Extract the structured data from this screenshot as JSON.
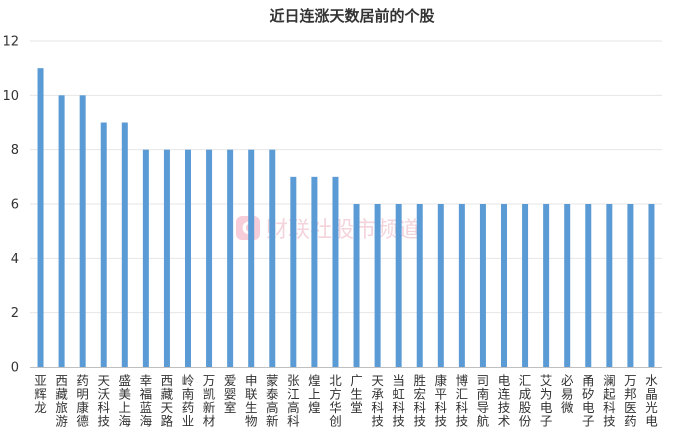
{
  "chart_data": {
    "type": "bar",
    "title": "近日连涨天数居前的个股",
    "xlabel": "",
    "ylabel": "",
    "ylim": [
      0,
      12
    ],
    "yticks": [
      0,
      2,
      4,
      6,
      8,
      10,
      12
    ],
    "grid": true,
    "legend": "none",
    "color": "#5b9bd5",
    "categories": [
      "亚辉龙",
      "西藏旅游",
      "药明康德",
      "天沃科技",
      "盛美上海",
      "幸福蓝海",
      "西藏天路",
      "岭南药业",
      "万凯新材",
      "爱婴室",
      "申联生物",
      "蒙泰高新",
      "张江高科",
      "煌上煌",
      "北方华创",
      "广生堂",
      "天承科技",
      "当虹科技",
      "胜宏科技",
      "康平科技",
      "博汇科技",
      "司南导航",
      "电连技术",
      "汇成股份",
      "艾为电子",
      "必易微",
      "甬矽电子",
      "澜起科技",
      "万邦医药",
      "水晶光电"
    ],
    "values": [
      11,
      10,
      10,
      9,
      9,
      8,
      8,
      8,
      8,
      8,
      8,
      8,
      7,
      7,
      7,
      6,
      6,
      6,
      6,
      6,
      6,
      6,
      6,
      6,
      6,
      6,
      6,
      6,
      6,
      6
    ]
  },
  "watermark": {
    "logo_letter": "C",
    "text": "财联社股市频道"
  }
}
